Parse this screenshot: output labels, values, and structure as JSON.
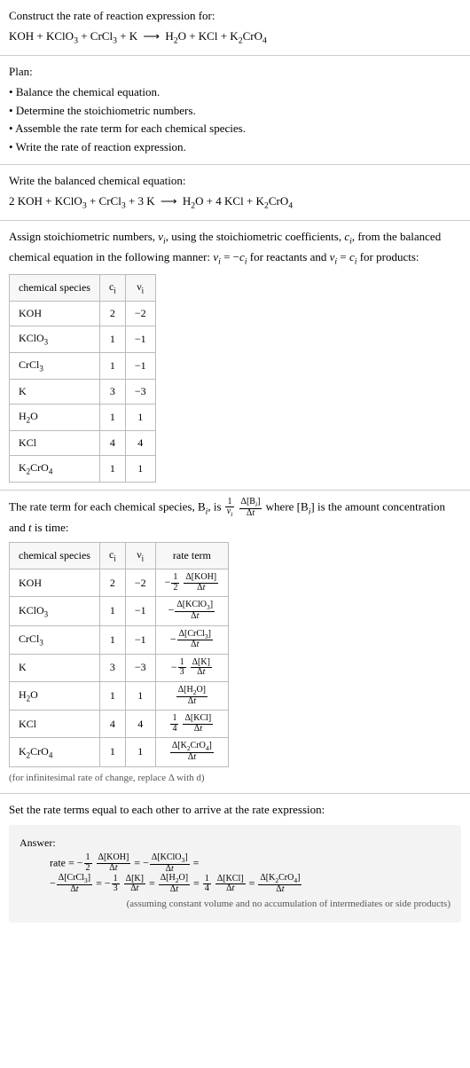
{
  "construct": {
    "prompt": "Construct the rate of reaction expression for:",
    "equation_html": "KOH + KClO<sub>3</sub> + CrCl<sub>3</sub> + K&nbsp;<span class='arrow'>⟶</span>&nbsp;H<sub>2</sub>O + KCl + K<sub>2</sub>CrO<sub>4</sub>"
  },
  "plan": {
    "heading": "Plan:",
    "items": [
      "Balance the chemical equation.",
      "Determine the stoichiometric numbers.",
      "Assemble the rate term for each chemical species.",
      "Write the rate of reaction expression."
    ]
  },
  "balanced": {
    "heading": "Write the balanced chemical equation:",
    "equation_html": "2 KOH + KClO<sub>3</sub> + CrCl<sub>3</sub> + 3 K&nbsp;<span class='arrow'>⟶</span>&nbsp;H<sub>2</sub>O + 4 KCl + K<sub>2</sub>CrO<sub>4</sub>"
  },
  "assign": {
    "intro_html": "Assign stoichiometric numbers, <i>ν<sub>i</sub></i>, using the stoichiometric coefficients, <i>c<sub>i</sub></i>, from the balanced chemical equation in the following manner: <i>ν<sub>i</sub></i> = −<i>c<sub>i</sub></i> for reactants and <i>ν<sub>i</sub></i> = <i>c<sub>i</sub></i> for products:",
    "headers": [
      "chemical species",
      "c<sub>i</sub>",
      "ν<sub>i</sub>"
    ],
    "rows": [
      {
        "species_html": "KOH",
        "c": "2",
        "nu": "−2"
      },
      {
        "species_html": "KClO<sub>3</sub>",
        "c": "1",
        "nu": "−1"
      },
      {
        "species_html": "CrCl<sub>3</sub>",
        "c": "1",
        "nu": "−1"
      },
      {
        "species_html": "K",
        "c": "3",
        "nu": "−3"
      },
      {
        "species_html": "H<sub>2</sub>O",
        "c": "1",
        "nu": "1"
      },
      {
        "species_html": "KCl",
        "c": "4",
        "nu": "4"
      },
      {
        "species_html": "K<sub>2</sub>CrO<sub>4</sub>",
        "c": "1",
        "nu": "1"
      }
    ]
  },
  "rateterm": {
    "intro_html": "The rate term for each chemical species, B<sub><i>i</i></sub>, is <span class='frac'><span class='num'>1</span><span class='den'><i>ν<sub>i</sub></i></span></span> <span class='frac'><span class='num'>Δ[B<sub><i>i</i></sub>]</span><span class='den'>Δ<i>t</i></span></span> where [B<sub><i>i</i></sub>] is the amount concentration and <i>t</i> is time:",
    "headers": [
      "chemical species",
      "c<sub>i</sub>",
      "ν<sub>i</sub>",
      "rate term"
    ],
    "rows": [
      {
        "species_html": "KOH",
        "c": "2",
        "nu": "−2",
        "rate_html": "−<span class='frac'><span class='num'>1</span><span class='den'>2</span></span> <span class='frac'><span class='num'>Δ[KOH]</span><span class='den'>Δ<i>t</i></span></span>"
      },
      {
        "species_html": "KClO<sub>3</sub>",
        "c": "1",
        "nu": "−1",
        "rate_html": "−<span class='frac'><span class='num'>Δ[KClO<sub>3</sub>]</span><span class='den'>Δ<i>t</i></span></span>"
      },
      {
        "species_html": "CrCl<sub>3</sub>",
        "c": "1",
        "nu": "−1",
        "rate_html": "−<span class='frac'><span class='num'>Δ[CrCl<sub>3</sub>]</span><span class='den'>Δ<i>t</i></span></span>"
      },
      {
        "species_html": "K",
        "c": "3",
        "nu": "−3",
        "rate_html": "−<span class='frac'><span class='num'>1</span><span class='den'>3</span></span> <span class='frac'><span class='num'>Δ[K]</span><span class='den'>Δ<i>t</i></span></span>"
      },
      {
        "species_html": "H<sub>2</sub>O",
        "c": "1",
        "nu": "1",
        "rate_html": "<span class='frac'><span class='num'>Δ[H<sub>2</sub>O]</span><span class='den'>Δ<i>t</i></span></span>"
      },
      {
        "species_html": "KCl",
        "c": "4",
        "nu": "4",
        "rate_html": "<span class='frac'><span class='num'>1</span><span class='den'>4</span></span> <span class='frac'><span class='num'>Δ[KCl]</span><span class='den'>Δ<i>t</i></span></span>"
      },
      {
        "species_html": "K<sub>2</sub>CrO<sub>4</sub>",
        "c": "1",
        "nu": "1",
        "rate_html": "<span class='frac'><span class='num'>Δ[K<sub>2</sub>CrO<sub>4</sub>]</span><span class='den'>Δ<i>t</i></span></span>"
      }
    ],
    "caption": "(for infinitesimal rate of change, replace Δ with d)"
  },
  "final": {
    "heading": "Set the rate terms equal to each other to arrive at the rate expression:",
    "answer_label": "Answer:",
    "rate_line1_html": "rate = −<span class='frac'><span class='num'>1</span><span class='den'>2</span></span> <span class='frac'><span class='num'>Δ[KOH]</span><span class='den'>Δ<i>t</i></span></span> = −<span class='frac'><span class='num'>Δ[KClO<sub>3</sub>]</span><span class='den'>Δ<i>t</i></span></span> =",
    "rate_line2_html": "−<span class='frac'><span class='num'>Δ[CrCl<sub>3</sub>]</span><span class='den'>Δ<i>t</i></span></span> = −<span class='frac'><span class='num'>1</span><span class='den'>3</span></span> <span class='frac'><span class='num'>Δ[K]</span><span class='den'>Δ<i>t</i></span></span> = <span class='frac'><span class='num'>Δ[H<sub>2</sub>O]</span><span class='den'>Δ<i>t</i></span></span> = <span class='frac'><span class='num'>1</span><span class='den'>4</span></span> <span class='frac'><span class='num'>Δ[KCl]</span><span class='den'>Δ<i>t</i></span></span> = <span class='frac'><span class='num'>Δ[K<sub>2</sub>CrO<sub>4</sub>]</span><span class='den'>Δ<i>t</i></span></span>",
    "note": "(assuming constant volume and no accumulation of intermediates or side products)"
  }
}
